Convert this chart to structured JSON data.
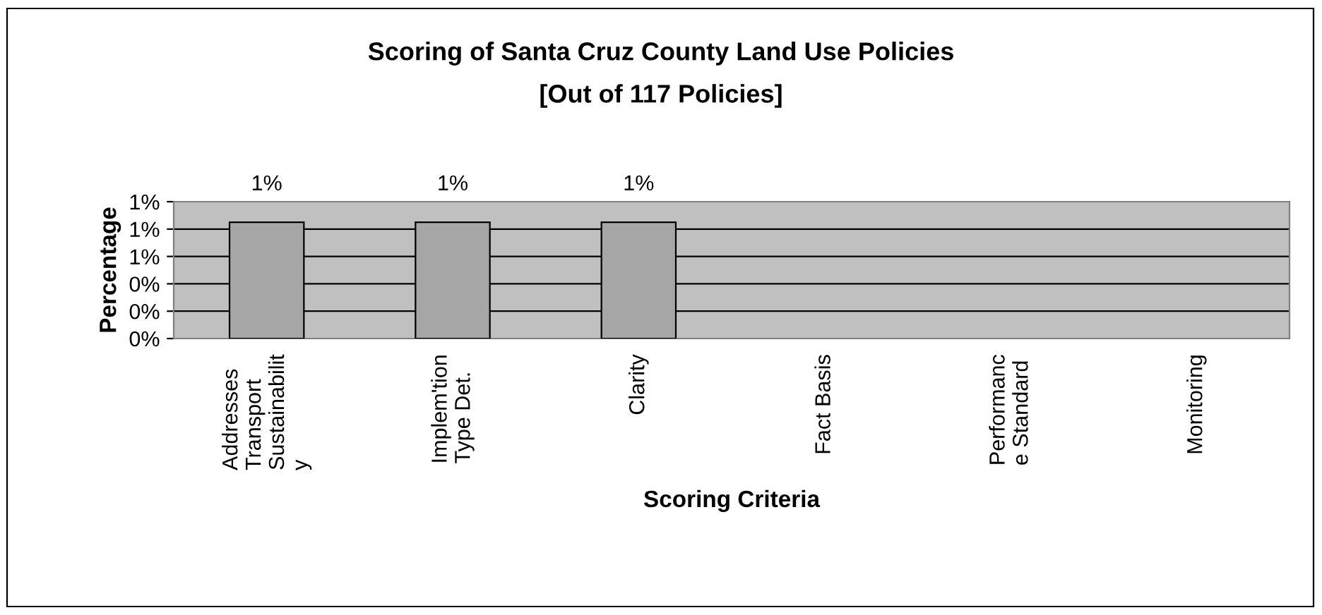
{
  "chart_data": {
    "type": "bar",
    "title": "Scoring of Santa Cruz County Land Use Policies",
    "subtitle": "[Out of 117 Policies]",
    "xlabel": "Scoring Criteria",
    "ylabel": "Percentage",
    "categories": [
      "Addresses\nTransport\nSustainabilit\ny",
      "Implem'tion\nType Det.",
      "Clarity",
      "Fact Basis",
      "Performanc\ne Standard",
      "Monitoring"
    ],
    "values": [
      0.85,
      0.85,
      0.85,
      null,
      null,
      null
    ],
    "value_labels": [
      "1%",
      "1%",
      "1%",
      null,
      null,
      null
    ],
    "color": "#a6a6a6",
    "ylim": [
      0,
      1.0
    ],
    "yticks": [
      {
        "value": 0,
        "label": "0%"
      },
      {
        "value": 0.2,
        "label": "0%"
      },
      {
        "value": 0.4,
        "label": "0%"
      },
      {
        "value": 0.6,
        "label": "1%"
      },
      {
        "value": 0.8,
        "label": "1%"
      },
      {
        "value": 1.0,
        "label": "1%"
      }
    ],
    "grid": "y",
    "legend": false
  }
}
